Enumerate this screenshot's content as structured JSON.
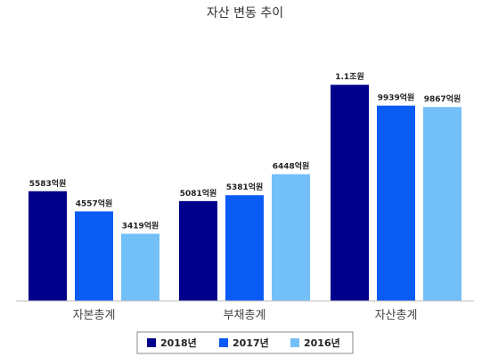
{
  "chart_data": {
    "type": "bar",
    "title": "자산 변동 추이",
    "categories": [
      "자본총계",
      "부채총계",
      "자산총계"
    ],
    "series": [
      {
        "name": "2018년",
        "color": "#00008B",
        "values": [
          5583,
          5081,
          11000
        ],
        "labels": [
          "5583억원",
          "5081억원",
          "1.1조원"
        ]
      },
      {
        "name": "2017년",
        "color": "#0A5CF5",
        "values": [
          4557,
          5381,
          9939
        ],
        "labels": [
          "4557억원",
          "5381억원",
          "9939억원"
        ]
      },
      {
        "name": "2016년",
        "color": "#73BFF8",
        "values": [
          3419,
          6448,
          9867
        ],
        "labels": [
          "3419억원",
          "6448억원",
          "9867억원"
        ]
      }
    ],
    "ylim": [
      0,
      11600
    ],
    "grid": false,
    "legend": "bottom"
  }
}
